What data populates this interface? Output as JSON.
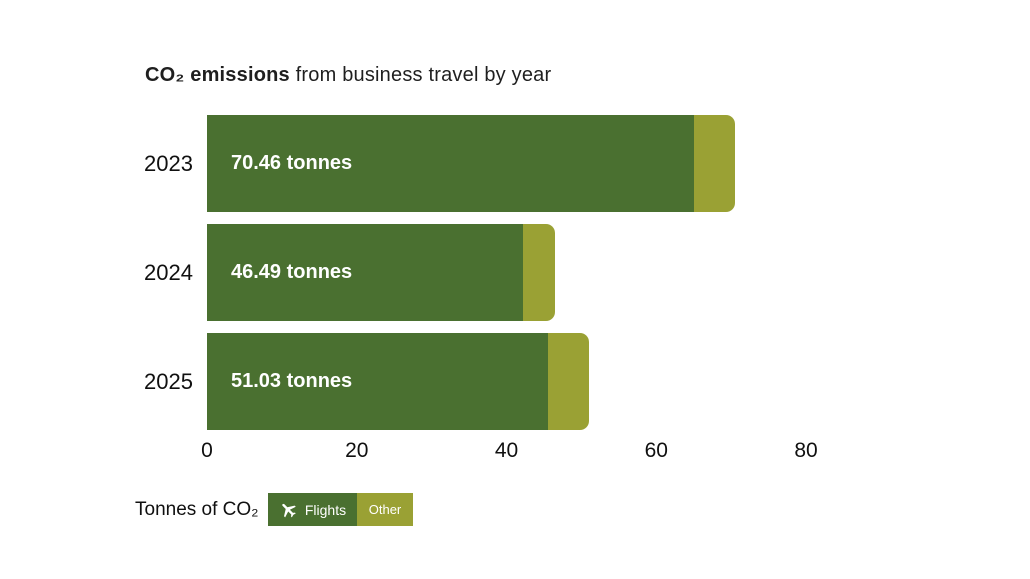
{
  "title": {
    "bold": "CO₂ emissions",
    "rest": " from business travel by year"
  },
  "chart_data": {
    "type": "bar",
    "orientation": "horizontal",
    "stacked": true,
    "title": "CO₂ emissions from business travel by year",
    "categories": [
      "2023",
      "2024",
      "2025"
    ],
    "series": [
      {
        "name": "Flights",
        "color": "#4a7030",
        "values": [
          65.1,
          42.2,
          45.5
        ]
      },
      {
        "name": "Other",
        "color": "#9aa134",
        "values": [
          5.36,
          4.29,
          5.53
        ]
      }
    ],
    "totals": [
      70.46,
      46.49,
      51.03
    ],
    "bar_labels": [
      "70.46 tonnes",
      "46.49 tonnes",
      "51.03 tonnes"
    ],
    "xlim": [
      0,
      80
    ],
    "x_ticks": [
      0,
      20,
      40,
      60,
      80
    ],
    "grid": false,
    "legend": {
      "title": "Tonnes of CO₂",
      "position": "bottom-left",
      "entries": [
        {
          "label": "Flights",
          "color": "#4a7030",
          "icon": "plane-icon"
        },
        {
          "label": "Other",
          "color": "#9aa134"
        }
      ]
    }
  }
}
